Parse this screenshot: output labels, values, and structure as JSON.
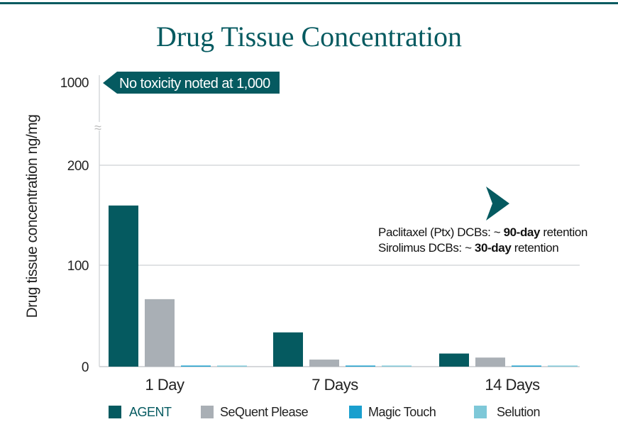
{
  "chart_data": {
    "type": "bar",
    "title": "Drug Tissue Concentration",
    "ylabel": "Drug tissue concentration ng/mg",
    "xlabel": "",
    "categories": [
      "1 Day",
      "7 Days",
      "14 Days"
    ],
    "ylim": [
      0,
      200
    ],
    "y_ticks": [
      "0",
      "100",
      "200",
      "1000"
    ],
    "axis_break": true,
    "grid": true,
    "legend_position": "bottom",
    "series": [
      {
        "name": "AGENT",
        "color": "#055a60",
        "values": [
          160,
          34,
          13
        ]
      },
      {
        "name": "SeQuent Please",
        "color": "#a9afb5",
        "values": [
          67,
          7,
          9
        ]
      },
      {
        "name": "Magic Touch",
        "color": "#1a9fce",
        "values": [
          1,
          0.3,
          0.3
        ]
      },
      {
        "name": "Selution",
        "color": "#7ec8d8",
        "values": [
          1,
          1,
          0.5
        ]
      }
    ],
    "annotations": {
      "callout": "No toxicity noted at 1,000",
      "retention_line1": {
        "pre": "Paclitaxel (Ptx)  DCBs: ~ ",
        "bold": "90-day",
        "post": " retention"
      },
      "retention_line2": {
        "pre": "Sirolimus DCBs: ~ ",
        "bold": "30-day",
        "post": " retention"
      }
    }
  }
}
